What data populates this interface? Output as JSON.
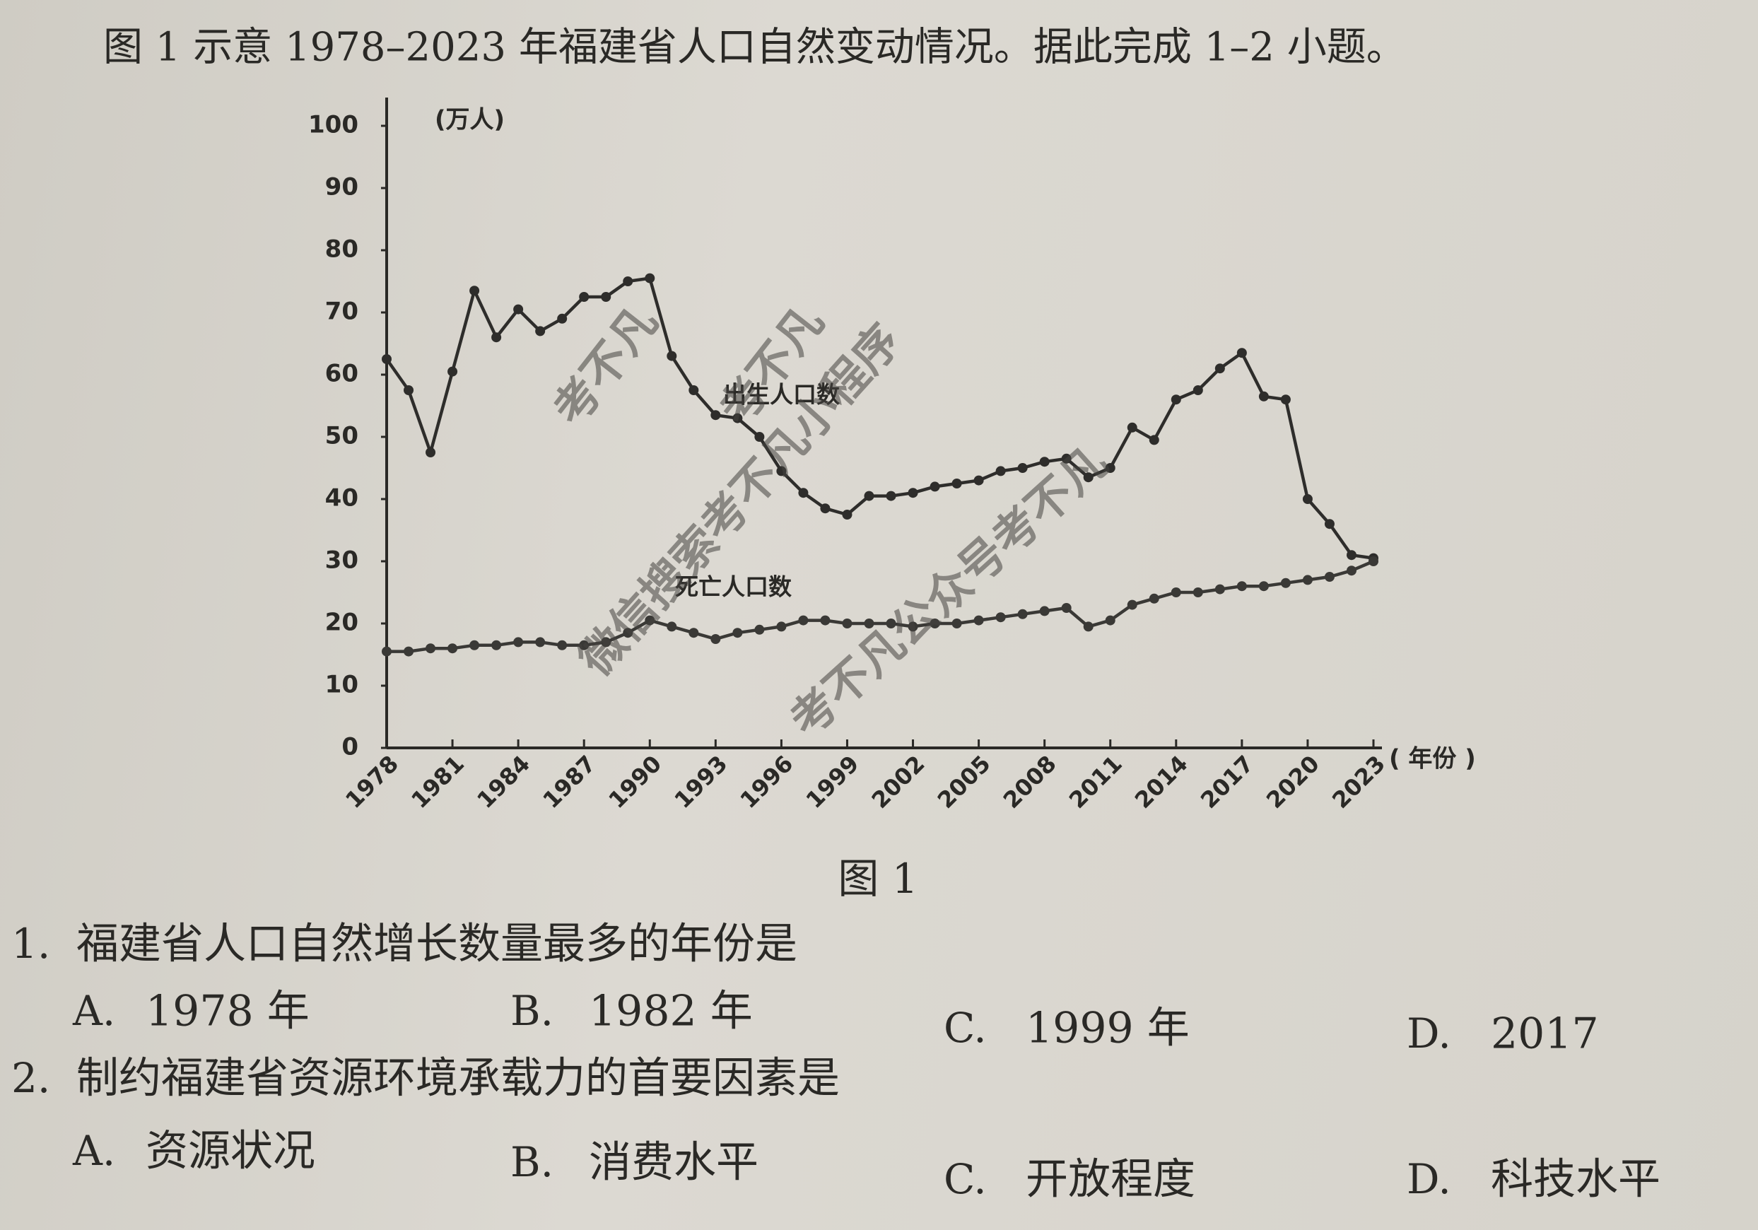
{
  "intro": "图 1 示意 1978–2023 年福建省人口自然变动情况。据此完成 1–2 小题。",
  "chart_data": {
    "type": "line",
    "y_label": "(万人)",
    "x_label": "( 年份 )",
    "x": [
      1978,
      1979,
      1980,
      1981,
      1982,
      1983,
      1984,
      1985,
      1986,
      1987,
      1988,
      1989,
      1990,
      1991,
      1992,
      1993,
      1994,
      1995,
      1996,
      1997,
      1998,
      1999,
      2000,
      2001,
      2002,
      2003,
      2004,
      2005,
      2006,
      2007,
      2008,
      2009,
      2010,
      2011,
      2012,
      2013,
      2014,
      2015,
      2016,
      2017,
      2018,
      2019,
      2020,
      2021,
      2022,
      2023
    ],
    "series": [
      {
        "name": "出生人口数",
        "color": "#2e2d2b",
        "values": [
          62.5,
          57.5,
          47.5,
          60.5,
          73.5,
          66,
          70.5,
          67,
          69,
          72.5,
          72.5,
          75,
          75.5,
          63,
          57.5,
          53.5,
          53,
          50,
          44.5,
          41,
          38.5,
          37.5,
          40.5,
          40.5,
          41,
          42,
          42.5,
          43,
          44.5,
          45,
          46,
          46.5,
          43.5,
          45,
          51.5,
          49.5,
          56,
          57.5,
          61,
          63.5,
          56.5,
          56,
          40,
          36,
          31,
          30.5
        ]
      },
      {
        "name": "死亡人口数",
        "color": "#3a3936",
        "values": [
          15.5,
          15.5,
          16,
          16,
          16.5,
          16.5,
          17,
          17,
          16.5,
          16.5,
          17,
          18.5,
          20.5,
          19.5,
          18.5,
          17.5,
          18.5,
          19,
          19.5,
          20.5,
          20.5,
          20,
          20,
          20,
          19.5,
          20,
          20,
          20.5,
          21,
          21.5,
          22,
          22.5,
          19.5,
          20.5,
          23,
          24,
          25,
          25,
          25.5,
          26,
          26,
          26.5,
          27,
          27.5,
          28.5,
          30
        ]
      }
    ],
    "xlim": [
      1978,
      2023
    ],
    "xticks": [
      1978,
      1981,
      1984,
      1987,
      1990,
      1993,
      1996,
      1999,
      2002,
      2005,
      2008,
      2011,
      2014,
      2017,
      2020,
      2023
    ],
    "ylim": [
      0,
      100
    ],
    "yticks": [
      0,
      10,
      20,
      30,
      40,
      50,
      60,
      70,
      80,
      90,
      100
    ]
  },
  "figure_caption": "图 1",
  "questions": [
    {
      "number": "1.",
      "stem": "福建省人口自然增长数量最多的年份是",
      "options": [
        {
          "letter": "A.",
          "text": "1978 年"
        },
        {
          "letter": "B.",
          "text": "1982 年"
        },
        {
          "letter": "C.",
          "text": "1999 年"
        },
        {
          "letter": "D.",
          "text": "2017"
        }
      ]
    },
    {
      "number": "2.",
      "stem": "制约福建省资源环境承载力的首要因素是",
      "options": [
        {
          "letter": "A.",
          "text": "资源状况"
        },
        {
          "letter": "B.",
          "text": "消费水平"
        },
        {
          "letter": "C.",
          "text": "开放程度"
        },
        {
          "letter": "D.",
          "text": "科技水平"
        }
      ]
    }
  ],
  "watermarks": [
    "考不凡",
    "考不凡",
    "微信搜索考不凡小程序",
    "考不凡公众号考不凡"
  ]
}
